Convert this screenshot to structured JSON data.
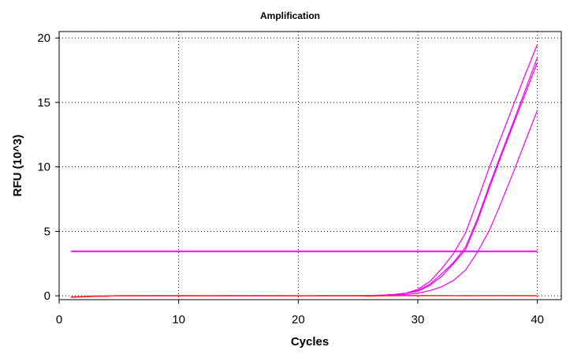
{
  "chart_data": {
    "type": "line",
    "title": "Amplification",
    "xlabel": "Cycles",
    "ylabel": "RFU (10^3)",
    "xlim": [
      0,
      42
    ],
    "ylim": [
      -0.3,
      20.5
    ],
    "xticks": [
      0,
      10,
      20,
      30,
      40
    ],
    "yticks": [
      0,
      5,
      10,
      15,
      20
    ],
    "grid": true,
    "threshold": {
      "value": 3.45,
      "color": "#ff00ff"
    },
    "series": [
      {
        "color": "#ee00ee",
        "x": [
          1,
          5,
          10,
          15,
          20,
          25,
          27,
          28,
          29,
          30,
          31,
          32,
          33,
          34,
          35,
          36,
          37,
          38,
          39,
          40
        ],
        "y": [
          -0.1,
          0,
          0,
          0,
          0,
          0,
          0.05,
          0.1,
          0.2,
          0.5,
          1.1,
          2.1,
          3.3,
          4.9,
          7.4,
          10.0,
          12.4,
          14.8,
          17.2,
          19.5
        ]
      },
      {
        "color": "#ee00ee",
        "x": [
          1,
          5,
          10,
          15,
          20,
          25,
          27,
          28,
          29,
          30,
          31,
          32,
          33,
          34,
          35,
          36,
          37,
          38,
          39,
          40
        ],
        "y": [
          -0.1,
          0,
          0,
          0,
          0,
          0,
          0.05,
          0.1,
          0.2,
          0.4,
          0.9,
          1.7,
          2.6,
          3.8,
          6.0,
          8.6,
          11.1,
          13.5,
          16.0,
          18.5
        ]
      },
      {
        "color": "#ee00ee",
        "x": [
          1,
          5,
          10,
          15,
          20,
          25,
          27,
          28,
          29,
          30,
          31,
          32,
          33,
          34,
          35,
          36,
          37,
          38,
          39,
          40
        ],
        "y": [
          -0.1,
          0,
          0,
          0,
          0,
          0,
          0.05,
          0.1,
          0.2,
          0.35,
          0.8,
          1.5,
          2.5,
          3.6,
          5.8,
          8.4,
          10.9,
          13.3,
          15.7,
          18.1
        ]
      },
      {
        "color": "#ee00ee",
        "x": [
          1,
          5,
          10,
          15,
          20,
          25,
          27,
          28,
          29,
          30,
          31,
          32,
          33,
          34,
          35,
          36,
          37,
          38,
          39,
          40
        ],
        "y": [
          -0.1,
          0,
          0,
          0,
          0,
          0,
          0.02,
          0.05,
          0.1,
          0.2,
          0.4,
          0.7,
          1.2,
          2.0,
          3.4,
          5.1,
          7.3,
          9.6,
          12.0,
          14.4
        ]
      },
      {
        "color": "#ff2020",
        "x": [
          1,
          3,
          5,
          8,
          10,
          12,
          14,
          16,
          18,
          20,
          22,
          24,
          26,
          28,
          30,
          32,
          34,
          36,
          38,
          40
        ],
        "y": [
          -0.12,
          -0.05,
          0,
          0.02,
          0,
          -0.02,
          0.02,
          0,
          0.01,
          -0.02,
          0.01,
          0,
          -0.03,
          0.01,
          0,
          0.02,
          0,
          0.01,
          0,
          0
        ]
      },
      {
        "color": "#ff2020",
        "x": [
          1,
          3,
          5,
          8,
          10,
          12,
          14,
          16,
          18,
          20,
          22,
          24,
          26,
          28,
          30,
          32,
          34,
          36,
          38,
          40
        ],
        "y": [
          -0.08,
          -0.02,
          0.01,
          0,
          0.02,
          0,
          0.01,
          0.02,
          0,
          0,
          0.02,
          0.01,
          0,
          0.02,
          0.01,
          0,
          0.02,
          0,
          0.01,
          0.01
        ]
      },
      {
        "color": "#ff3030",
        "x": [
          1,
          3,
          5,
          8,
          10,
          12,
          14,
          16,
          18,
          20,
          22,
          24,
          26,
          28,
          30,
          32,
          34,
          36,
          38,
          40
        ],
        "y": [
          -0.1,
          -0.04,
          0,
          0.01,
          0.01,
          0.01,
          0,
          0.01,
          0.02,
          0.01,
          0,
          0.01,
          0.01,
          0,
          0.01,
          0.01,
          0,
          0.01,
          0.01,
          0
        ]
      }
    ]
  }
}
